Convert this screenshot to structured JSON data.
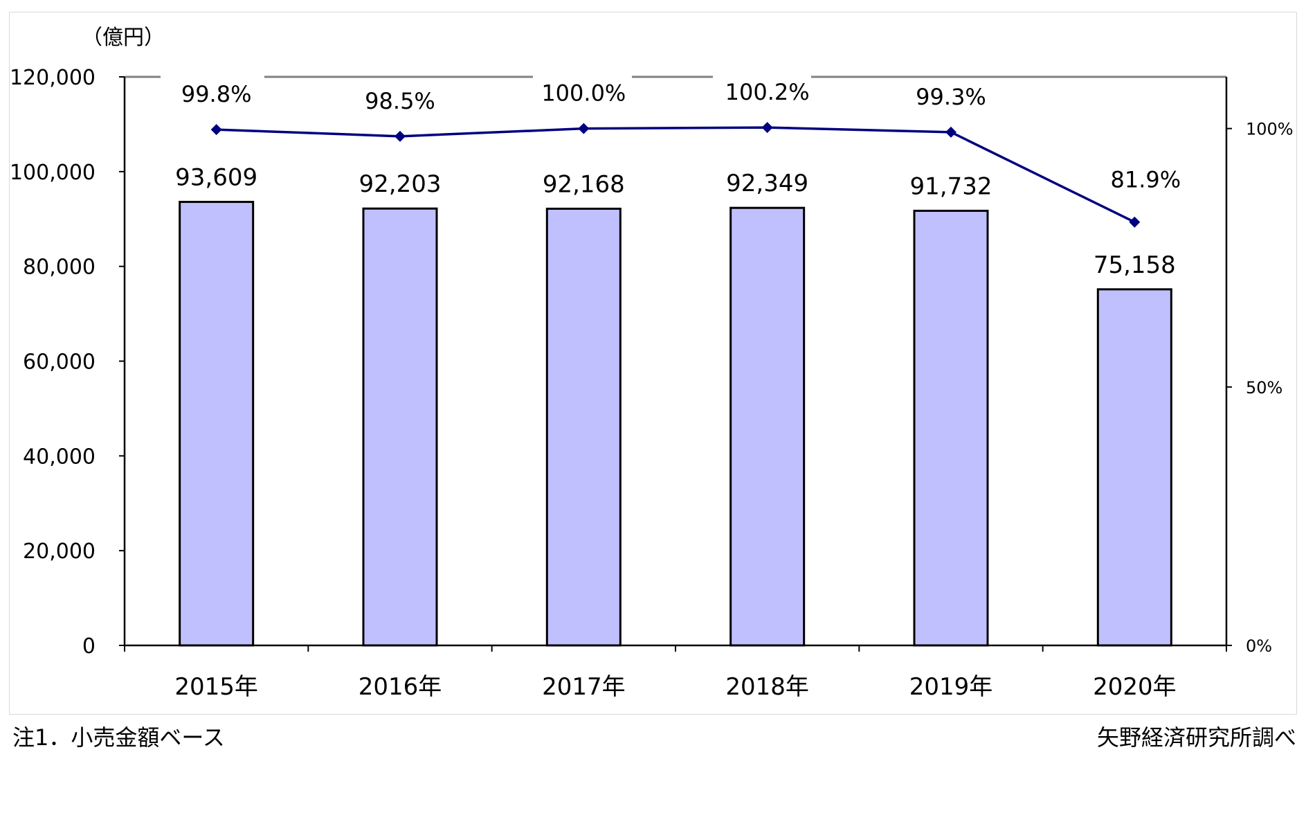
{
  "chart_data": {
    "type": "bar",
    "y_unit": "（億円）",
    "categories": [
      "2015年",
      "2016年",
      "2017年",
      "2018年",
      "2019年",
      "2020年"
    ],
    "bars": {
      "values": [
        93609,
        92203,
        92168,
        92349,
        91732,
        75158
      ],
      "labels": [
        "93,609",
        "92,203",
        "92,168",
        "92,349",
        "91,732",
        "75,158"
      ],
      "color": "#c0c0ff"
    },
    "line": {
      "values": [
        99.8,
        98.5,
        100.0,
        100.2,
        99.3,
        81.9
      ],
      "labels": [
        "99.8%",
        "98.5%",
        "100.0%",
        "100.2%",
        "99.3%",
        "81.9%"
      ],
      "color": "#000080"
    },
    "y_left": {
      "min": 0,
      "max": 120000,
      "ticks": [
        0,
        20000,
        40000,
        60000,
        80000,
        100000,
        120000
      ],
      "tick_labels": [
        "0",
        "20,000",
        "40,000",
        "60,000",
        "80,000",
        "100,000",
        "120,000"
      ]
    },
    "y_right": {
      "min": 0,
      "max": 110,
      "ticks": [
        0,
        50,
        100
      ],
      "tick_labels": [
        "0%",
        "50%",
        "100%"
      ]
    },
    "grid": false,
    "legend": "none"
  },
  "notes": {
    "footnote": "注1．小売金額ベース",
    "source": "矢野経済研究所調べ"
  }
}
